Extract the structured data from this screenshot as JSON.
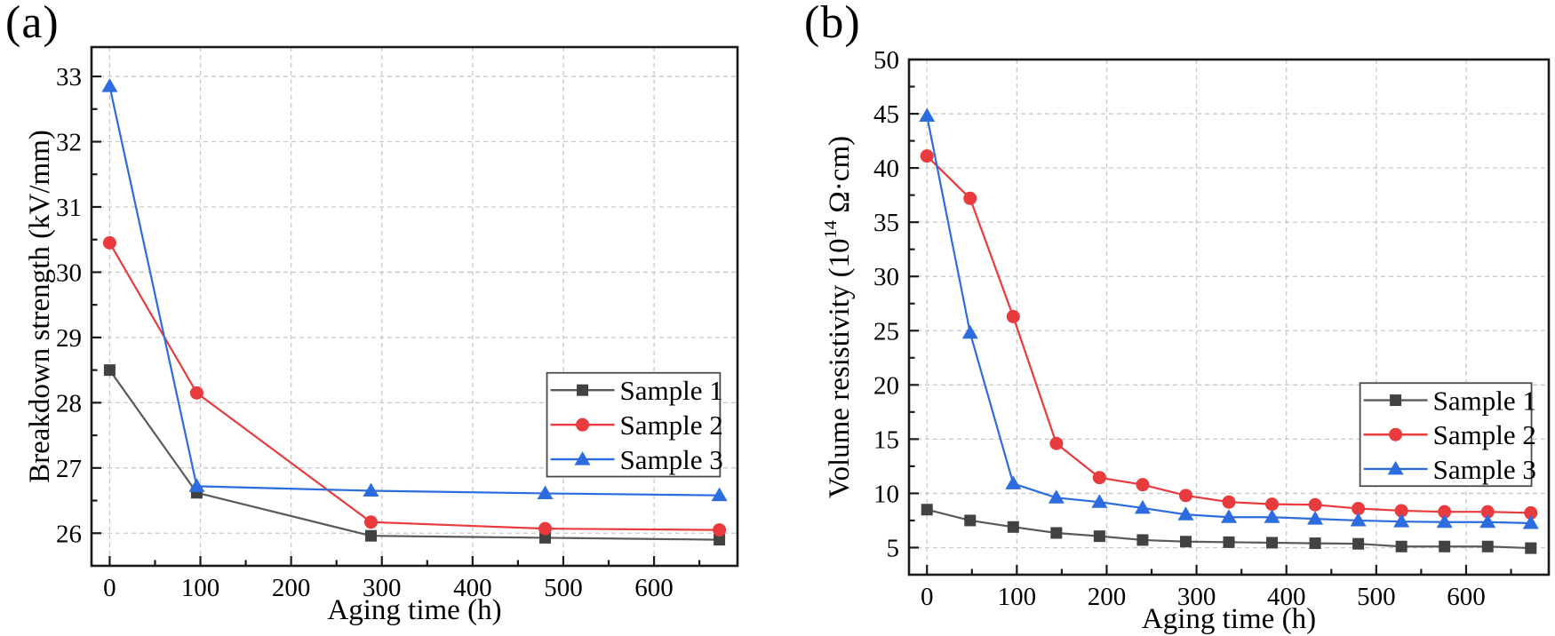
{
  "page": {
    "background": "#ffffff"
  },
  "chart_data": [
    {
      "id": "a",
      "type": "line",
      "panel_label": "(a)",
      "title": "",
      "xlabel": "Aging time (h)",
      "ylabel": "Breakdown strength (kV/mm)",
      "ylabel_parts": [
        {
          "text": "Breakdown strength (kV/mm)"
        }
      ],
      "x": [
        0,
        96,
        288,
        480,
        672
      ],
      "series": [
        {
          "name": "Sample 1",
          "marker": "square",
          "line_color": "#5a5a5a",
          "marker_color": "#424242",
          "values": [
            28.5,
            26.62,
            25.96,
            25.93,
            25.9
          ]
        },
        {
          "name": "Sample 2",
          "marker": "circle",
          "line_color": "#e93a3d",
          "marker_color": "#e93a3d",
          "values": [
            30.45,
            28.15,
            26.17,
            26.07,
            26.05
          ]
        },
        {
          "name": "Sample 3",
          "marker": "triangle",
          "line_color": "#2d6cdf",
          "marker_color": "#2d6cdf",
          "values": [
            32.85,
            26.72,
            26.65,
            26.61,
            26.58
          ]
        }
      ],
      "xlim": [
        -20,
        692
      ],
      "ylim": [
        25.5,
        33.45
      ],
      "xticks": [
        0,
        100,
        200,
        300,
        400,
        500,
        600
      ],
      "yticks": [
        26,
        27,
        28,
        29,
        30,
        31,
        32,
        33
      ],
      "minor_x_step": 50,
      "minor_y_step": 0.5,
      "grid": true,
      "grid_color": "#c9c9c9",
      "frame_color": "#1a1a1a",
      "legend": {
        "position": "inside-lower-right",
        "entries": [
          "Sample 1",
          "Sample 2",
          "Sample 3"
        ],
        "border_color": "#4a4a4a",
        "background": "#ffffff"
      }
    },
    {
      "id": "b",
      "type": "line",
      "panel_label": "(b)",
      "title": "",
      "xlabel": "Aging time (h)",
      "ylabel": "Volume resistivity (10^14 Ω·cm)",
      "ylabel_parts": [
        {
          "text": "Volume resistivity (10"
        },
        {
          "text": "14",
          "super": true
        },
        {
          "text": " Ω·cm)"
        }
      ],
      "x": [
        0,
        48,
        96,
        144,
        192,
        240,
        288,
        336,
        384,
        432,
        480,
        528,
        576,
        624,
        672
      ],
      "series": [
        {
          "name": "Sample 1",
          "marker": "square",
          "line_color": "#5a5a5a",
          "marker_color": "#424242",
          "values": [
            8.5,
            7.5,
            6.9,
            6.35,
            6.05,
            5.7,
            5.55,
            5.5,
            5.45,
            5.4,
            5.35,
            5.1,
            5.1,
            5.1,
            4.95
          ]
        },
        {
          "name": "Sample 2",
          "marker": "circle",
          "line_color": "#e93a3d",
          "marker_color": "#e93a3d",
          "values": [
            41.1,
            37.2,
            26.3,
            14.6,
            11.45,
            10.8,
            9.8,
            9.2,
            9.0,
            8.95,
            8.6,
            8.4,
            8.3,
            8.3,
            8.2
          ]
        },
        {
          "name": "Sample 3",
          "marker": "triangle",
          "line_color": "#2d6cdf",
          "marker_color": "#2d6cdf",
          "values": [
            44.8,
            24.8,
            10.9,
            9.6,
            9.2,
            8.65,
            8.05,
            7.8,
            7.8,
            7.65,
            7.5,
            7.4,
            7.35,
            7.35,
            7.25
          ]
        }
      ],
      "xlim": [
        -20,
        692
      ],
      "ylim": [
        2.5,
        50
      ],
      "xticks": [
        0,
        100,
        200,
        300,
        400,
        500,
        600
      ],
      "yticks": [
        5,
        10,
        15,
        20,
        25,
        30,
        35,
        40,
        45,
        50
      ],
      "minor_x_step": 50,
      "minor_y_step": 2.5,
      "grid": true,
      "grid_color": "#c9c9c9",
      "frame_color": "#1a1a1a",
      "legend": {
        "position": "inside-lower-right",
        "entries": [
          "Sample 1",
          "Sample 2",
          "Sample 3"
        ],
        "border_color": "#4a4a4a",
        "background": "#ffffff"
      }
    }
  ]
}
